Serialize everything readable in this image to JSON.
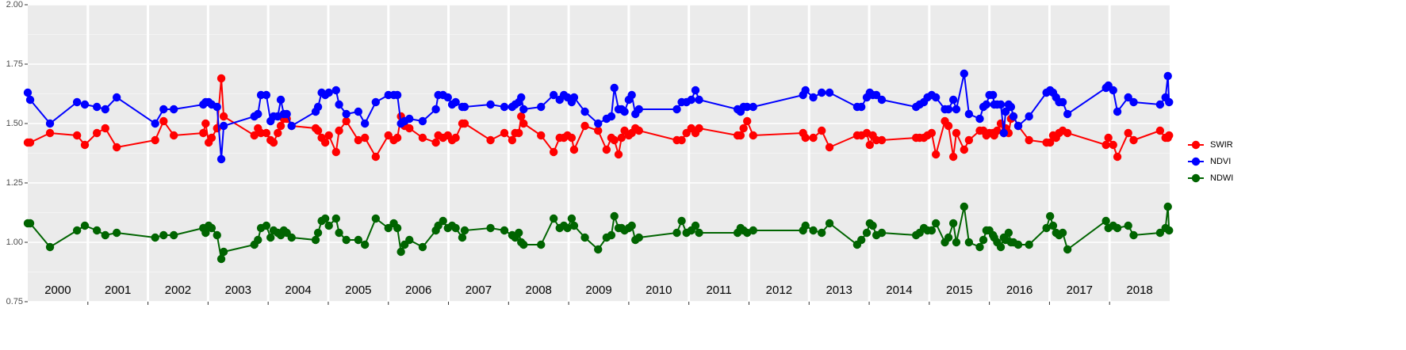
{
  "chart_data": {
    "type": "line",
    "x": [
      2000.0,
      2000.04,
      2000.37,
      2000.82,
      2000.95,
      2001.15,
      2001.29,
      2001.48,
      2002.12,
      2002.26,
      2002.43,
      2002.92,
      2002.96,
      2003.01,
      2003.06,
      2003.15,
      2003.22,
      2003.26,
      2003.77,
      2003.83,
      2003.88,
      2003.97,
      2004.04,
      2004.09,
      2004.16,
      2004.21,
      2004.26,
      2004.31,
      2004.39,
      2004.79,
      2004.83,
      2004.89,
      2004.95,
      2005.01,
      2005.13,
      2005.18,
      2005.3,
      2005.5,
      2005.61,
      2005.79,
      2006.0,
      2006.09,
      2006.15,
      2006.21,
      2006.27,
      2006.35,
      2006.57,
      2006.79,
      2006.83,
      2006.91,
      2006.99,
      2007.06,
      2007.12,
      2007.23,
      2007.27,
      2007.7,
      2007.93,
      2008.06,
      2008.11,
      2008.17,
      2008.21,
      2008.25,
      2008.54,
      2008.75,
      2008.85,
      2008.92,
      2008.98,
      2009.05,
      2009.09,
      2009.27,
      2009.49,
      2009.63,
      2009.71,
      2009.76,
      2009.83,
      2009.88,
      2009.93,
      2010.0,
      2010.05,
      2010.11,
      2010.17,
      2010.8,
      2010.88,
      2010.96,
      2011.04,
      2011.11,
      2011.17,
      2011.81,
      2011.86,
      2011.91,
      2011.97,
      2012.07,
      2012.9,
      2012.94,
      2013.07,
      2013.21,
      2013.34,
      2013.8,
      2013.87,
      2013.96,
      2014.01,
      2014.06,
      2014.12,
      2014.21,
      2014.78,
      2014.84,
      2014.91,
      2014.97,
      2015.04,
      2015.11,
      2015.26,
      2015.32,
      2015.4,
      2015.45,
      2015.58,
      2015.66,
      2015.84,
      2015.9,
      2015.95,
      2016.0,
      2016.06,
      2016.08,
      2016.13,
      2016.19,
      2016.24,
      2016.27,
      2016.32,
      2016.36,
      2016.4,
      2016.48,
      2016.66,
      2016.95,
      2017.01,
      2017.06,
      2017.11,
      2017.16,
      2017.22,
      2017.3,
      2017.94,
      2017.98,
      2018.06,
      2018.13,
      2018.31,
      2018.4,
      2018.84,
      2018.93,
      2018.97,
      2018.99
    ],
    "series": [
      {
        "name": "SWIR",
        "color": "#ff0000",
        "values": [
          1.42,
          1.42,
          1.46,
          1.45,
          1.41,
          1.46,
          1.48,
          1.4,
          1.43,
          1.51,
          1.45,
          1.46,
          1.5,
          1.42,
          1.44,
          1.48,
          1.69,
          1.53,
          1.45,
          1.48,
          1.46,
          1.46,
          1.43,
          1.42,
          1.46,
          1.49,
          1.52,
          1.52,
          1.49,
          1.48,
          1.47,
          1.44,
          1.42,
          1.45,
          1.38,
          1.47,
          1.51,
          1.43,
          1.44,
          1.36,
          1.45,
          1.43,
          1.44,
          1.53,
          1.49,
          1.48,
          1.44,
          1.42,
          1.45,
          1.44,
          1.45,
          1.43,
          1.44,
          1.5,
          1.5,
          1.43,
          1.46,
          1.43,
          1.46,
          1.46,
          1.53,
          1.5,
          1.45,
          1.38,
          1.44,
          1.44,
          1.45,
          1.44,
          1.39,
          1.49,
          1.47,
          1.39,
          1.44,
          1.43,
          1.37,
          1.44,
          1.47,
          1.45,
          1.46,
          1.48,
          1.47,
          1.43,
          1.43,
          1.46,
          1.48,
          1.46,
          1.48,
          1.45,
          1.45,
          1.48,
          1.51,
          1.45,
          1.46,
          1.44,
          1.44,
          1.47,
          1.4,
          1.45,
          1.45,
          1.46,
          1.41,
          1.45,
          1.43,
          1.43,
          1.44,
          1.44,
          1.44,
          1.45,
          1.46,
          1.37,
          1.51,
          1.49,
          1.36,
          1.46,
          1.39,
          1.43,
          1.47,
          1.47,
          1.45,
          1.46,
          1.46,
          1.45,
          1.47,
          1.5,
          1.46,
          1.48,
          1.46,
          1.52,
          1.53,
          1.49,
          1.43,
          1.42,
          1.42,
          1.45,
          1.44,
          1.46,
          1.47,
          1.46,
          1.41,
          1.44,
          1.41,
          1.36,
          1.46,
          1.43,
          1.47,
          1.44,
          1.44,
          1.45
        ]
      },
      {
        "name": "NDVI",
        "color": "#0000ff",
        "values": [
          1.63,
          1.6,
          1.5,
          1.59,
          1.58,
          1.57,
          1.56,
          1.61,
          1.5,
          1.56,
          1.56,
          1.58,
          1.59,
          1.59,
          1.58,
          1.57,
          1.35,
          1.49,
          1.53,
          1.54,
          1.62,
          1.62,
          1.51,
          1.53,
          1.53,
          1.6,
          1.54,
          1.54,
          1.49,
          1.55,
          1.57,
          1.63,
          1.62,
          1.63,
          1.64,
          1.58,
          1.54,
          1.55,
          1.5,
          1.59,
          1.62,
          1.62,
          1.62,
          1.5,
          1.51,
          1.52,
          1.51,
          1.56,
          1.62,
          1.62,
          1.61,
          1.58,
          1.59,
          1.57,
          1.57,
          1.58,
          1.57,
          1.57,
          1.58,
          1.59,
          1.61,
          1.56,
          1.57,
          1.62,
          1.6,
          1.62,
          1.61,
          1.59,
          1.61,
          1.55,
          1.5,
          1.52,
          1.53,
          1.65,
          1.56,
          1.56,
          1.55,
          1.6,
          1.62,
          1.54,
          1.56,
          1.56,
          1.59,
          1.59,
          1.6,
          1.64,
          1.6,
          1.56,
          1.55,
          1.57,
          1.57,
          1.57,
          1.62,
          1.64,
          1.61,
          1.63,
          1.63,
          1.57,
          1.57,
          1.61,
          1.63,
          1.62,
          1.62,
          1.6,
          1.57,
          1.58,
          1.59,
          1.61,
          1.62,
          1.61,
          1.56,
          1.56,
          1.6,
          1.56,
          1.71,
          1.54,
          1.52,
          1.57,
          1.58,
          1.62,
          1.62,
          1.58,
          1.58,
          1.58,
          1.46,
          1.55,
          1.58,
          1.57,
          1.53,
          1.49,
          1.53,
          1.63,
          1.64,
          1.63,
          1.61,
          1.59,
          1.59,
          1.54,
          1.65,
          1.66,
          1.64,
          1.55,
          1.61,
          1.59,
          1.58,
          1.61,
          1.7,
          1.59
        ]
      },
      {
        "name": "NDWI",
        "color": "#006400",
        "values": [
          1.08,
          1.08,
          0.98,
          1.05,
          1.07,
          1.05,
          1.03,
          1.04,
          1.02,
          1.03,
          1.03,
          1.06,
          1.04,
          1.07,
          1.06,
          1.03,
          0.93,
          0.96,
          0.99,
          1.01,
          1.06,
          1.07,
          1.02,
          1.05,
          1.04,
          1.03,
          1.05,
          1.04,
          1.02,
          1.01,
          1.04,
          1.09,
          1.1,
          1.07,
          1.1,
          1.04,
          1.01,
          1.01,
          0.99,
          1.1,
          1.06,
          1.08,
          1.06,
          0.96,
          0.99,
          1.01,
          0.98,
          1.05,
          1.07,
          1.09,
          1.06,
          1.07,
          1.06,
          1.02,
          1.05,
          1.06,
          1.05,
          1.03,
          1.02,
          1.04,
          1.0,
          0.99,
          0.99,
          1.1,
          1.06,
          1.07,
          1.06,
          1.1,
          1.07,
          1.02,
          0.97,
          1.02,
          1.03,
          1.11,
          1.06,
          1.06,
          1.05,
          1.06,
          1.07,
          1.01,
          1.02,
          1.04,
          1.09,
          1.04,
          1.05,
          1.07,
          1.04,
          1.04,
          1.06,
          1.05,
          1.04,
          1.05,
          1.05,
          1.07,
          1.05,
          1.04,
          1.08,
          0.99,
          1.01,
          1.04,
          1.08,
          1.07,
          1.03,
          1.04,
          1.03,
          1.04,
          1.06,
          1.05,
          1.05,
          1.08,
          1.0,
          1.02,
          1.08,
          1.0,
          1.15,
          1.0,
          0.98,
          1.01,
          1.05,
          1.05,
          1.03,
          1.02,
          1.0,
          0.98,
          1.02,
          1.01,
          1.04,
          1.0,
          1.0,
          0.99,
          0.99,
          1.06,
          1.11,
          1.07,
          1.04,
          1.03,
          1.04,
          0.97,
          1.09,
          1.06,
          1.07,
          1.06,
          1.07,
          1.03,
          1.04,
          1.06,
          1.15,
          1.05
        ]
      }
    ],
    "xlim": [
      2000,
      2019
    ],
    "xticks": [
      2001,
      2002,
      2003,
      2004,
      2005,
      2006,
      2007,
      2008,
      2009,
      2010,
      2011,
      2012,
      2013,
      2014,
      2015,
      2016,
      2017,
      2018
    ],
    "year_labels": [
      "2000",
      "2001",
      "2002",
      "2003",
      "2004",
      "2005",
      "2006",
      "2007",
      "2008",
      "2009",
      "2010",
      "2011",
      "2012",
      "2013",
      "2014",
      "2015",
      "2016",
      "2017",
      "2018"
    ],
    "ylim": [
      0.75,
      2
    ],
    "yticks": [
      {
        "value": 0.75,
        "label": "0.75"
      },
      {
        "value": 1,
        "label": "1.00"
      },
      {
        "value": 1.25,
        "label": "1.25"
      },
      {
        "value": 1.5,
        "label": "1.50"
      },
      {
        "value": 1.75,
        "label": "1.75"
      },
      {
        "value": 2,
        "label": "2.00"
      }
    ],
    "grid": true,
    "legend": "right"
  }
}
